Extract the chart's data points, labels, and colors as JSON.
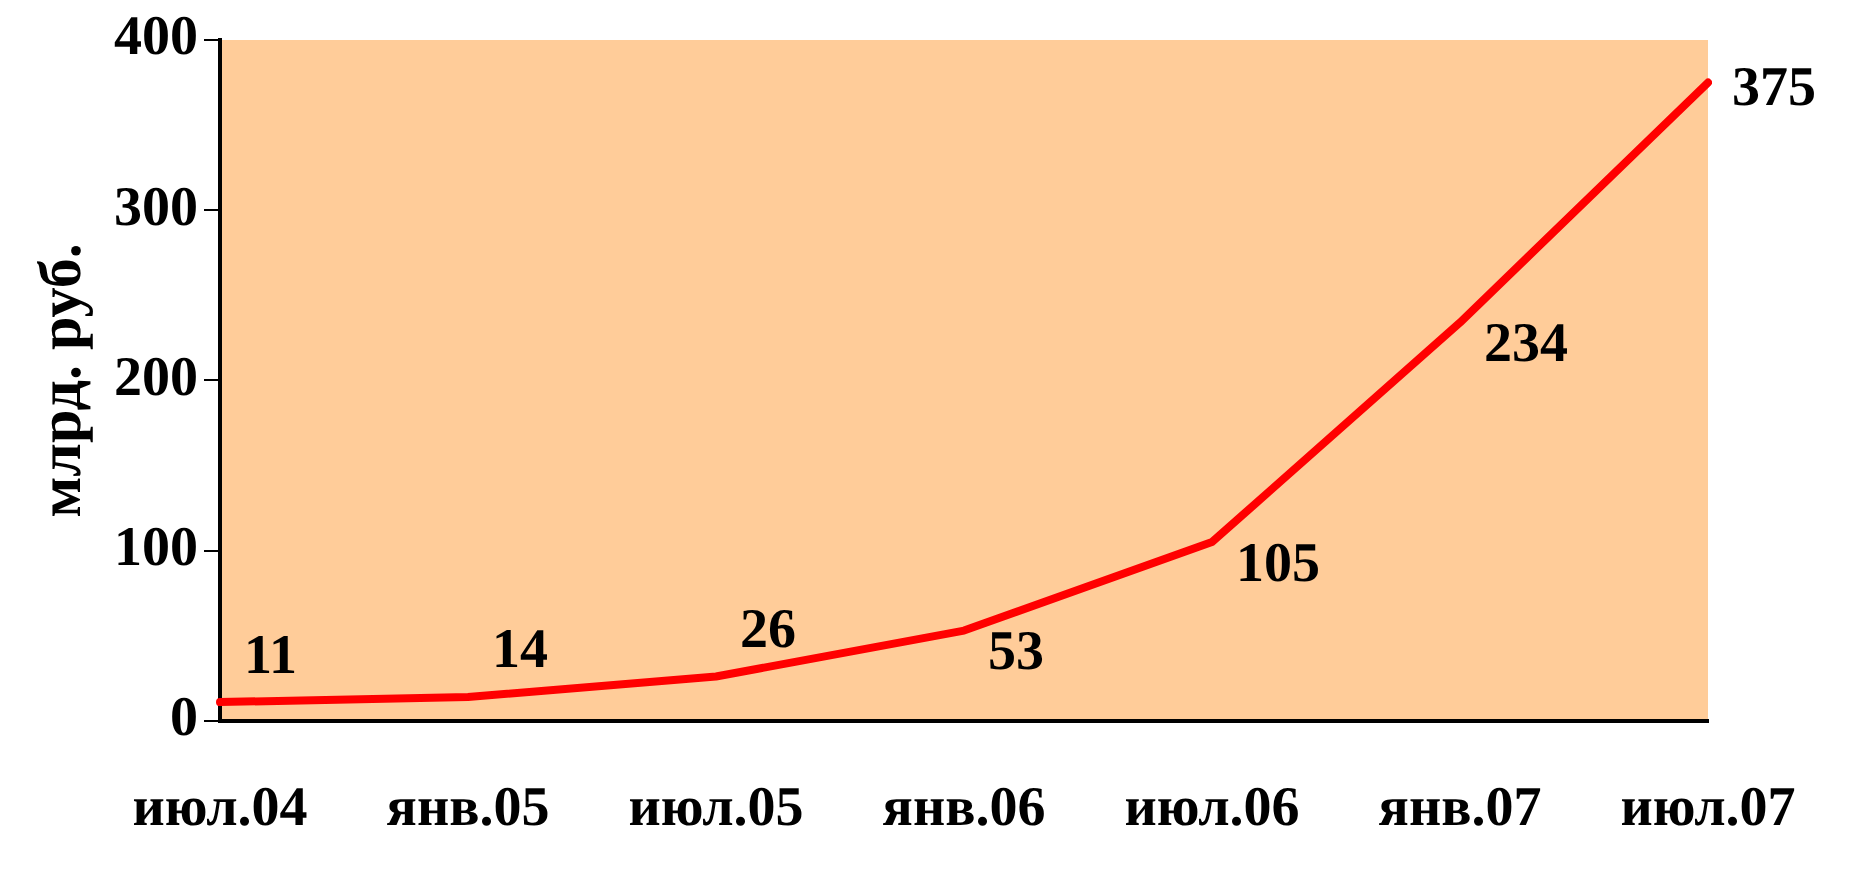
{
  "chart_data": {
    "type": "line",
    "ylabel": "млрд. руб.",
    "categories": [
      "июл.04",
      "янв.05",
      "июл.05",
      "янв.06",
      "июл.06",
      "янв.07",
      "июл.07"
    ],
    "series": [
      {
        "color": "#ff0000",
        "values": [
          11,
          14,
          26,
          53,
          105,
          234,
          375
        ]
      }
    ],
    "ylim": [
      0,
      400
    ],
    "yticks": [
      0,
      100,
      200,
      300,
      400
    ],
    "data_labels": true,
    "grid": false,
    "legend": false,
    "marker": "none",
    "line_style": "solid"
  }
}
